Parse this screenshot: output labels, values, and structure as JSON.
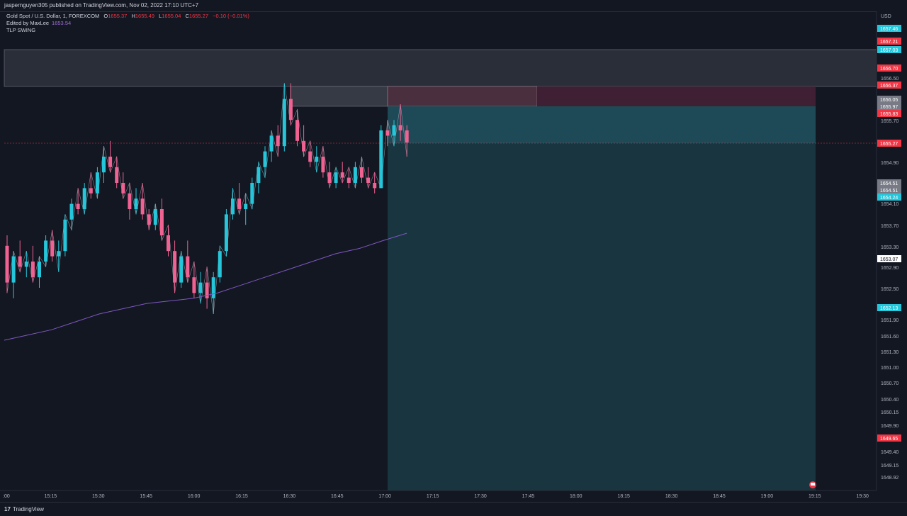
{
  "header": {
    "publisher_line": "jaspernguyen305 published on TradingView.com, Nov 02, 2022 17:10 UTC+7"
  },
  "legend": {
    "symbol": "Gold Spot / U.S. Dollar, 1, FOREXCOM",
    "open_label": "O",
    "open": "1655.37",
    "high_label": "H",
    "high": "1655.49",
    "low_label": "L",
    "low": "1655.04",
    "close_label": "C",
    "close": "1655.27",
    "change": "−0.10 (−0.01%)",
    "edited_by": "Edited by MaxLee",
    "ma_value": "1653.54",
    "indicator": "TLP SWING"
  },
  "footer": {
    "brand": "TradingView"
  },
  "colors": {
    "background": "#131722",
    "up": "#26c6da",
    "down": "#f06292",
    "ma_line": "#7e57c2",
    "target_zone": "#1f4b57",
    "stop_zone": "#3f1f33",
    "supply_zone": "#2a2e39"
  },
  "chart_data": {
    "type": "candlestick",
    "currency": "USD",
    "y_ticks": [
      "1656.50",
      "1655.70",
      "1654.90",
      "1654.10",
      "1653.70",
      "1653.30",
      "1652.90",
      "1652.50",
      "1651.90",
      "1651.60",
      "1651.30",
      "1651.00",
      "1650.70",
      "1650.40",
      "1650.15",
      "1649.90",
      "1649.40",
      "1649.15",
      "1648.92"
    ],
    "x_ticks": [
      ":00",
      "15:15",
      "15:30",
      "15:45",
      "16:00",
      "16:15",
      "16:30",
      "16:45",
      "17:00",
      "17:15",
      "17:30",
      "17:45",
      "18:00",
      "18:15",
      "18:30",
      "18:45",
      "19:00",
      "19:15",
      "19:30"
    ],
    "price_labels": [
      {
        "text": "1657.46",
        "color": "#26c6da"
      },
      {
        "text": "1657.21",
        "color": "#f23645"
      },
      {
        "text": "1657.03",
        "color": "#26c6da"
      },
      {
        "text": "1656.70",
        "color": "#f23645"
      },
      {
        "text": "1656.37",
        "color": "#f23645"
      },
      {
        "text": "1656.05",
        "color": "#787b86"
      },
      {
        "text": "1655.97",
        "color": "#787b86"
      },
      {
        "text": "1655.83",
        "color": "#f23645"
      },
      {
        "text": "1655.27",
        "color": "#f23645"
      },
      {
        "text": "1654.51",
        "color": "#787b86"
      },
      {
        "text": "1654.51",
        "color": "#787b86"
      },
      {
        "text": "1654.24",
        "color": "#26c6da"
      },
      {
        "text": "1653.07",
        "color": "#ffffff"
      },
      {
        "text": "1652.13",
        "color": "#26c6da"
      },
      {
        "text": "1649.65",
        "color": "#f23645"
      }
    ],
    "candles": [
      [
        1653.3,
        1653.5,
        1652.4,
        1652.6
      ],
      [
        1652.6,
        1653.2,
        1652.3,
        1653.1
      ],
      [
        1653.1,
        1653.4,
        1652.8,
        1652.9
      ],
      [
        1652.9,
        1653.2,
        1652.7,
        1653.0
      ],
      [
        1653.0,
        1653.3,
        1652.6,
        1652.7
      ],
      [
        1652.7,
        1653.1,
        1652.5,
        1653.0
      ],
      [
        1653.0,
        1653.5,
        1652.9,
        1653.4
      ],
      [
        1653.4,
        1653.6,
        1653.0,
        1653.1
      ],
      [
        1653.1,
        1653.4,
        1652.8,
        1653.2
      ],
      [
        1653.2,
        1653.9,
        1653.1,
        1653.8
      ],
      [
        1653.8,
        1654.2,
        1653.6,
        1654.1
      ],
      [
        1654.1,
        1654.4,
        1653.9,
        1654.0
      ],
      [
        1654.0,
        1654.5,
        1653.9,
        1654.4
      ],
      [
        1654.4,
        1654.7,
        1654.2,
        1654.3
      ],
      [
        1654.3,
        1654.8,
        1654.2,
        1654.7
      ],
      [
        1654.7,
        1655.2,
        1654.5,
        1655.0
      ],
      [
        1655.0,
        1655.3,
        1654.7,
        1654.8
      ],
      [
        1654.8,
        1655.0,
        1654.4,
        1654.5
      ],
      [
        1654.5,
        1654.7,
        1654.2,
        1654.3
      ],
      [
        1654.3,
        1654.5,
        1653.8,
        1654.0
      ],
      [
        1654.0,
        1654.4,
        1653.9,
        1654.2
      ],
      [
        1654.2,
        1654.5,
        1653.8,
        1653.9
      ],
      [
        1653.9,
        1654.0,
        1653.6,
        1653.7
      ],
      [
        1653.7,
        1654.1,
        1653.6,
        1654.0
      ],
      [
        1654.0,
        1654.2,
        1653.4,
        1653.5
      ],
      [
        1653.5,
        1653.7,
        1653.1,
        1653.2
      ],
      [
        1653.2,
        1653.4,
        1652.4,
        1652.6
      ],
      [
        1652.6,
        1653.2,
        1652.5,
        1653.1
      ],
      [
        1653.1,
        1653.4,
        1652.6,
        1652.7
      ],
      [
        1652.7,
        1653.0,
        1652.3,
        1652.4
      ],
      [
        1652.4,
        1652.8,
        1652.2,
        1652.6
      ],
      [
        1652.6,
        1652.9,
        1652.1,
        1652.3
      ],
      [
        1652.3,
        1652.8,
        1652.0,
        1652.7
      ],
      [
        1652.7,
        1653.3,
        1652.6,
        1653.2
      ],
      [
        1653.2,
        1654.0,
        1653.1,
        1653.9
      ],
      [
        1653.9,
        1654.4,
        1653.8,
        1654.2
      ],
      [
        1654.2,
        1654.5,
        1653.9,
        1654.0
      ],
      [
        1654.0,
        1654.3,
        1653.7,
        1654.1
      ],
      [
        1654.1,
        1654.6,
        1654.0,
        1654.5
      ],
      [
        1654.5,
        1654.9,
        1654.3,
        1654.8
      ],
      [
        1654.8,
        1655.2,
        1654.6,
        1655.1
      ],
      [
        1655.1,
        1655.5,
        1654.9,
        1655.4
      ],
      [
        1655.4,
        1655.6,
        1655.0,
        1655.2
      ],
      [
        1655.2,
        1656.4,
        1655.1,
        1656.1
      ],
      [
        1656.1,
        1656.4,
        1655.6,
        1655.7
      ],
      [
        1655.7,
        1655.9,
        1655.2,
        1655.3
      ],
      [
        1655.3,
        1655.6,
        1655.0,
        1655.1
      ],
      [
        1655.1,
        1655.3,
        1654.8,
        1654.9
      ],
      [
        1654.9,
        1655.2,
        1654.7,
        1655.0
      ],
      [
        1655.0,
        1655.2,
        1654.6,
        1654.7
      ],
      [
        1654.7,
        1654.9,
        1654.4,
        1654.5
      ],
      [
        1654.5,
        1654.8,
        1654.4,
        1654.7
      ],
      [
        1654.7,
        1654.9,
        1654.5,
        1654.6
      ],
      [
        1654.6,
        1654.8,
        1654.4,
        1654.5
      ],
      [
        1654.5,
        1654.9,
        1654.4,
        1654.8
      ],
      [
        1654.8,
        1655.0,
        1654.5,
        1654.6
      ],
      [
        1654.6,
        1654.8,
        1654.4,
        1654.5
      ],
      [
        1654.5,
        1654.7,
        1654.3,
        1654.4
      ],
      [
        1654.4,
        1655.6,
        1654.4,
        1655.5
      ],
      [
        1655.5,
        1655.7,
        1655.2,
        1655.4
      ],
      [
        1655.4,
        1655.7,
        1655.2,
        1655.6
      ],
      [
        1655.6,
        1656.0,
        1655.3,
        1655.5
      ],
      [
        1655.5,
        1655.6,
        1655.0,
        1655.27
      ]
    ],
    "moving_average": [
      1651.5,
      1651.6,
      1651.7,
      1651.85,
      1652.0,
      1652.1,
      1652.2,
      1652.25,
      1652.3,
      1652.4,
      1652.55,
      1652.7,
      1652.85,
      1653.0,
      1653.15,
      1653.25,
      1653.4,
      1653.54
    ],
    "title": "",
    "xlabel": "",
    "ylabel": ""
  }
}
